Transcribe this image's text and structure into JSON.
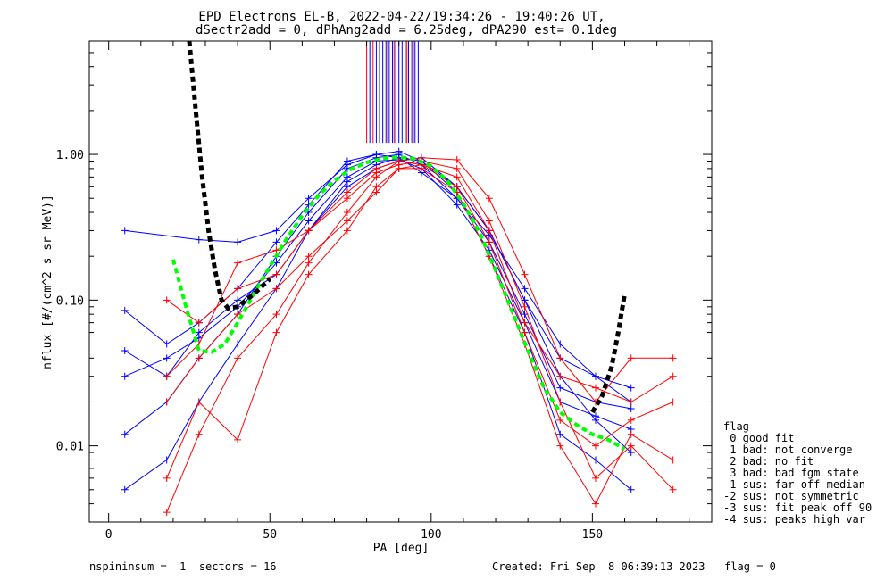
{
  "chart_data": {
    "type": "line",
    "title": "EPD Electrons EL-B, 2022-04-22/19:34:26 - 19:40:26 UT,",
    "subtitle": "dSectr2add = 0, dPhAng2add = 6.25deg, dPA290_est=   0.1deg",
    "xlabel": "PA [deg]",
    "ylabel": "nflux [#/(cm^2 s sr MeV)]",
    "xlim": [
      -6,
      187
    ],
    "ylim": [
      0.003,
      6
    ],
    "yscale": "log",
    "xticks": [
      0,
      50,
      100,
      150
    ],
    "xtick_labels": [
      "0",
      "50",
      "100",
      "150"
    ],
    "yticks": [
      0.01,
      0.1,
      1.0
    ],
    "ytick_labels": [
      "0.01",
      "0.10",
      "1.00"
    ],
    "grid": false,
    "colors": {
      "blue_series": "#0000ff",
      "red_series": "#ff0000",
      "fit": "#00ff00",
      "fit2": "#000000"
    },
    "series": [
      {
        "color": "#0000ff",
        "x": [
          5,
          18,
          28,
          40,
          52,
          62,
          74,
          83,
          90,
          97,
          108,
          118,
          129,
          140,
          151,
          162
        ],
        "y": [
          0.03,
          0.04,
          0.055,
          0.09,
          0.18,
          0.35,
          0.7,
          0.9,
          0.92,
          0.8,
          0.45,
          0.22,
          0.07,
          0.02,
          0.016,
          0.013
        ]
      },
      {
        "color": "#0000ff",
        "x": [
          5,
          18,
          28,
          40,
          52,
          62,
          74,
          83,
          90,
          97,
          108,
          118,
          129,
          140,
          151,
          162
        ],
        "y": [
          0.012,
          0.02,
          0.04,
          0.08,
          0.2,
          0.4,
          0.8,
          0.95,
          1.0,
          0.85,
          0.5,
          0.25,
          0.08,
          0.025,
          0.02,
          0.018
        ]
      },
      {
        "color": "#0000ff",
        "x": [
          5,
          28,
          40,
          52,
          62,
          74,
          83,
          90,
          97,
          108,
          118,
          129,
          140,
          151,
          162
        ],
        "y": [
          0.3,
          0.26,
          0.25,
          0.3,
          0.5,
          0.85,
          1.0,
          1.05,
          0.9,
          0.6,
          0.3,
          0.1,
          0.04,
          0.03,
          0.02
        ]
      },
      {
        "color": "#0000ff",
        "x": [
          5,
          18,
          28,
          40,
          52,
          62,
          74,
          83,
          90,
          97,
          108,
          118,
          129,
          140,
          151,
          162
        ],
        "y": [
          0.005,
          0.008,
          0.02,
          0.05,
          0.12,
          0.3,
          0.65,
          0.85,
          0.95,
          0.9,
          0.55,
          0.2,
          0.06,
          0.012,
          0.008,
          0.005
        ]
      },
      {
        "color": "#0000ff",
        "x": [
          5,
          18,
          28,
          40,
          52,
          62,
          74,
          83,
          90,
          97,
          108,
          118,
          129,
          140,
          151,
          162
        ],
        "y": [
          0.085,
          0.05,
          0.07,
          0.12,
          0.25,
          0.45,
          0.9,
          1.0,
          0.95,
          0.75,
          0.5,
          0.28,
          0.12,
          0.05,
          0.03,
          0.025
        ]
      },
      {
        "color": "#0000ff",
        "x": [
          5,
          18,
          28,
          40,
          52,
          62,
          74,
          83,
          90,
          97,
          108,
          118,
          129,
          140,
          151,
          162
        ],
        "y": [
          0.045,
          0.03,
          0.06,
          0.1,
          0.15,
          0.3,
          0.6,
          0.8,
          0.9,
          0.95,
          0.6,
          0.3,
          0.1,
          0.03,
          0.015,
          0.009
        ]
      },
      {
        "color": "#ff0000",
        "x": [
          18,
          28,
          40,
          52,
          62,
          74,
          83,
          90,
          97,
          108,
          118,
          129,
          140,
          151,
          162,
          175
        ],
        "y": [
          0.02,
          0.04,
          0.08,
          0.12,
          0.2,
          0.35,
          0.55,
          0.8,
          0.85,
          0.6,
          0.25,
          0.06,
          0.015,
          0.01,
          0.015,
          0.02
        ]
      },
      {
        "color": "#ff0000",
        "x": [
          18,
          28,
          40,
          52,
          62,
          74,
          83,
          90,
          97,
          108,
          118,
          129,
          140,
          151,
          162,
          175
        ],
        "y": [
          0.1,
          0.07,
          0.12,
          0.15,
          0.3,
          0.5,
          0.75,
          0.85,
          0.9,
          0.8,
          0.35,
          0.09,
          0.02,
          0.006,
          0.01,
          0.005
        ]
      },
      {
        "color": "#ff0000",
        "x": [
          18,
          28,
          40,
          52,
          62,
          74,
          83,
          90,
          97,
          108,
          118,
          129,
          140,
          151,
          162,
          175
        ],
        "y": [
          0.0035,
          0.012,
          0.04,
          0.08,
          0.18,
          0.4,
          0.7,
          0.9,
          0.85,
          0.7,
          0.3,
          0.07,
          0.03,
          0.025,
          0.02,
          0.03
        ]
      },
      {
        "color": "#ff0000",
        "x": [
          18,
          28,
          40,
          52,
          62,
          74,
          83,
          90,
          97,
          108,
          118,
          129,
          140,
          151,
          162,
          175
        ],
        "y": [
          0.03,
          0.05,
          0.18,
          0.22,
          0.3,
          0.55,
          0.8,
          0.9,
          0.95,
          0.92,
          0.5,
          0.15,
          0.04,
          0.02,
          0.04,
          0.04
        ]
      },
      {
        "color": "#ff0000",
        "x": [
          18,
          28,
          40,
          52,
          62,
          74,
          83,
          90,
          97,
          108,
          118,
          129,
          140,
          151,
          162,
          175
        ],
        "y": [
          0.006,
          0.02,
          0.011,
          0.06,
          0.15,
          0.3,
          0.6,
          0.8,
          0.8,
          0.55,
          0.2,
          0.05,
          0.01,
          0.004,
          0.012,
          0.008
        ]
      }
    ],
    "fit_green": {
      "x": [
        20,
        24,
        28,
        32,
        36,
        40,
        45,
        50,
        55,
        60,
        65,
        70,
        75,
        80,
        85,
        90,
        95,
        100,
        105,
        110,
        115,
        120,
        125,
        130,
        135,
        140,
        145,
        150,
        155,
        160
      ],
      "y": [
        0.19,
        0.09,
        0.045,
        0.044,
        0.05,
        0.07,
        0.11,
        0.17,
        0.26,
        0.38,
        0.52,
        0.66,
        0.79,
        0.88,
        0.94,
        0.96,
        0.93,
        0.83,
        0.66,
        0.46,
        0.29,
        0.16,
        0.085,
        0.045,
        0.025,
        0.017,
        0.014,
        0.012,
        0.011,
        0.0095
      ]
    },
    "fit_black": {
      "x": [
        25,
        27,
        29,
        31,
        33,
        35,
        37,
        40,
        45,
        50,
        150,
        153,
        156,
        158,
        160
      ],
      "y": [
        6,
        2.0,
        0.7,
        0.3,
        0.16,
        0.1,
        0.088,
        0.09,
        0.11,
        0.14,
        0.017,
        0.022,
        0.035,
        0.06,
        0.11
      ]
    },
    "spikes": {
      "blue_x": [
        81,
        83,
        84,
        85,
        86,
        87,
        88,
        89,
        90,
        91,
        92,
        93,
        94,
        95,
        96
      ],
      "red_x": [
        80,
        82,
        86.5,
        88.5,
        92.5,
        94.5
      ],
      "y_bottom": 1.2
    },
    "legend": {
      "title": "flag",
      "entries": [
        " 0 good fit",
        " 1 bad: not converge",
        " 2 bad: no fit",
        " 3 bad: bad fgm state",
        "-1 sus: far off median",
        "-2 sus: not symmetric",
        "-3 sus: fit peak off 90",
        "-4 sus: peaks high var"
      ]
    }
  },
  "footer": {
    "left": "nspininsum =  1  sectors = 16",
    "right": "Created: Fri Sep  8 06:39:13 2023   flag = 0"
  }
}
